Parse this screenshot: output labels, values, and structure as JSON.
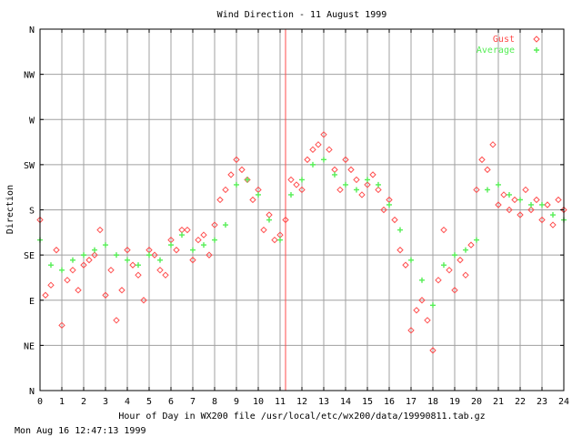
{
  "chart_data": {
    "type": "scatter",
    "title": "Wind Direction - 11 August 1999",
    "xlabel": "Hour of Day in WX200 file /usr/local/etc/wx200/data/19990811.tab.gz",
    "ylabel": "Direction",
    "xlim": [
      0,
      24
    ],
    "ylim": [
      0,
      360
    ],
    "x_ticks": [
      "0",
      "1",
      "2",
      "3",
      "4",
      "5",
      "6",
      "7",
      "8",
      "9",
      "10",
      "11",
      "12",
      "13",
      "14",
      "15",
      "16",
      "17",
      "18",
      "19",
      "20",
      "21",
      "22",
      "23",
      "24"
    ],
    "y_ticks": [
      "N",
      "NE",
      "E",
      "SE",
      "S",
      "SW",
      "W",
      "NW",
      "N"
    ],
    "grid": true,
    "legend_position": "top-right",
    "marker_line_hour": 11.25,
    "colors": {
      "gust": "#ff4d4d",
      "average": "#55ee55",
      "marker_line": "#ff4d4d",
      "grid": "#a0a0a0"
    },
    "series": [
      {
        "name": "Gust",
        "marker": "diamond",
        "x": [
          0.0,
          0.25,
          0.5,
          0.75,
          1.0,
          1.25,
          1.5,
          1.75,
          2.0,
          2.25,
          2.5,
          2.75,
          3.0,
          3.25,
          3.5,
          3.75,
          4.0,
          4.25,
          4.5,
          4.75,
          5.0,
          5.25,
          5.5,
          5.75,
          6.0,
          6.25,
          6.5,
          6.75,
          7.0,
          7.25,
          7.5,
          7.75,
          8.0,
          8.25,
          8.5,
          8.75,
          9.0,
          9.25,
          9.5,
          9.75,
          10.0,
          10.25,
          10.5,
          10.75,
          11.0,
          11.25,
          11.5,
          11.75,
          12.0,
          12.25,
          12.5,
          12.75,
          13.0,
          13.25,
          13.5,
          13.75,
          14.0,
          14.25,
          14.5,
          14.75,
          15.0,
          15.25,
          15.5,
          15.75,
          16.0,
          16.25,
          16.5,
          16.75,
          17.0,
          17.25,
          17.5,
          17.75,
          18.0,
          18.25,
          18.5,
          18.75,
          19.0,
          19.25,
          19.5,
          19.75,
          20.0,
          20.25,
          20.5,
          20.75,
          21.0,
          21.25,
          21.5,
          21.75,
          22.0,
          22.25,
          22.5,
          22.75,
          23.0,
          23.25,
          23.5,
          23.75,
          24.0
        ],
        "values": [
          170,
          95,
          105,
          140,
          65,
          110,
          120,
          100,
          125,
          130,
          135,
          160,
          95,
          120,
          70,
          100,
          140,
          125,
          115,
          90,
          140,
          135,
          120,
          115,
          150,
          140,
          160,
          160,
          130,
          150,
          155,
          135,
          165,
          190,
          200,
          215,
          230,
          220,
          210,
          190,
          200,
          160,
          175,
          150,
          155,
          170,
          210,
          205,
          200,
          230,
          240,
          245,
          255,
          240,
          220,
          200,
          230,
          220,
          210,
          195,
          205,
          215,
          200,
          180,
          190,
          170,
          140,
          125,
          60,
          80,
          90,
          70,
          40,
          110,
          160,
          120,
          100,
          130,
          115,
          145,
          200,
          230,
          220,
          245,
          185,
          195,
          180,
          190,
          175,
          200,
          180,
          190,
          170,
          185,
          165,
          190,
          180
        ]
      },
      {
        "name": "Average",
        "marker": "plus",
        "x": [
          0.0,
          0.5,
          1.0,
          1.5,
          2.0,
          2.5,
          3.0,
          3.5,
          4.0,
          4.5,
          5.0,
          5.5,
          6.0,
          6.5,
          7.0,
          7.5,
          8.0,
          8.5,
          9.0,
          9.5,
          10.0,
          10.5,
          11.0,
          11.5,
          12.0,
          12.5,
          13.0,
          13.5,
          14.0,
          14.5,
          15.0,
          15.5,
          16.0,
          16.5,
          17.0,
          17.5,
          18.0,
          18.5,
          19.0,
          19.5,
          20.0,
          20.5,
          21.0,
          21.5,
          22.0,
          22.5,
          23.0,
          23.5,
          24.0
        ],
        "values": [
          150,
          125,
          120,
          130,
          135,
          140,
          145,
          135,
          130,
          125,
          135,
          130,
          145,
          155,
          140,
          145,
          150,
          165,
          205,
          210,
          195,
          170,
          150,
          195,
          210,
          225,
          230,
          215,
          205,
          200,
          210,
          205,
          185,
          160,
          130,
          110,
          85,
          125,
          135,
          140,
          150,
          200,
          205,
          195,
          190,
          185,
          185,
          175,
          170
        ]
      }
    ]
  },
  "footer": {
    "timestamp": "Mon Aug 16 12:47:13 1999"
  }
}
